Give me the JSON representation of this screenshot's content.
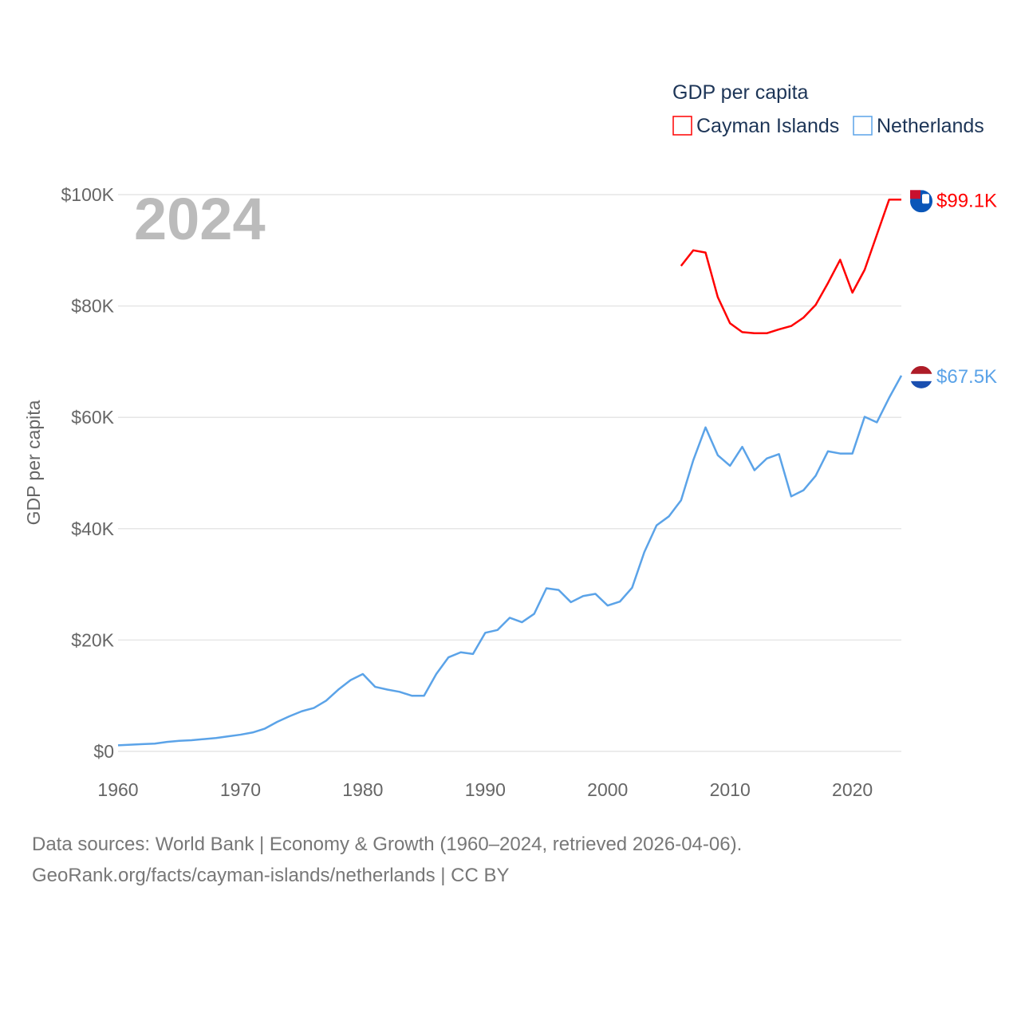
{
  "chart_data": {
    "type": "line",
    "title": "GDP per capita",
    "current_year_label": "2024",
    "xlabel": "",
    "ylabel": "GDP per capita",
    "xlim": [
      1960,
      2024
    ],
    "ylim": [
      0,
      100000
    ],
    "grid": true,
    "legend_placement": "top-right",
    "legend_title": "GDP per capita",
    "x_ticks": [
      1960,
      1970,
      1980,
      1990,
      2000,
      2010,
      2020
    ],
    "x_tick_labels": [
      "1960",
      "1970",
      "1980",
      "1990",
      "2000",
      "2010",
      "2020"
    ],
    "y_ticks": [
      0,
      20000,
      40000,
      60000,
      80000,
      100000
    ],
    "y_tick_labels": [
      "$0",
      "$20K",
      "$40K",
      "$60K",
      "$80K",
      "$100K"
    ],
    "series": [
      {
        "name": "Cayman Islands",
        "color": "#ff0000",
        "end_label": "$99.1K",
        "flag": "cayman-islands-flag",
        "x": [
          2006,
          2007,
          2008,
          2009,
          2010,
          2011,
          2012,
          2013,
          2014,
          2015,
          2016,
          2017,
          2018,
          2019,
          2020,
          2021,
          2022,
          2023,
          2024
        ],
        "values": [
          87.2,
          90.0,
          89.6,
          81.6,
          76.9,
          75.3,
          75.1,
          75.1,
          75.8,
          76.4,
          77.9,
          80.2,
          84.1,
          88.3,
          82.4,
          86.5,
          92.8,
          99.1,
          99.1
        ]
      },
      {
        "name": "Netherlands",
        "color": "#5ba3e8",
        "end_label": "$67.5K",
        "flag": "netherlands-flag",
        "x": [
          1960,
          1961,
          1962,
          1963,
          1964,
          1965,
          1966,
          1967,
          1968,
          1969,
          1970,
          1971,
          1972,
          1973,
          1974,
          1975,
          1976,
          1977,
          1978,
          1979,
          1980,
          1981,
          1982,
          1983,
          1984,
          1985,
          1986,
          1987,
          1988,
          1989,
          1990,
          1991,
          1992,
          1993,
          1994,
          1995,
          1996,
          1997,
          1998,
          1999,
          2000,
          2001,
          2002,
          2003,
          2004,
          2005,
          2006,
          2007,
          2008,
          2009,
          2010,
          2011,
          2012,
          2013,
          2014,
          2015,
          2016,
          2017,
          2018,
          2019,
          2020,
          2021,
          2022,
          2023,
          2024
        ],
        "values": [
          1.1,
          1.2,
          1.3,
          1.4,
          1.7,
          1.9,
          2.0,
          2.2,
          2.4,
          2.7,
          3.0,
          3.4,
          4.1,
          5.3,
          6.3,
          7.2,
          7.8,
          9.1,
          11.1,
          12.8,
          13.9,
          11.6,
          11.1,
          10.7,
          10.0,
          10.0,
          13.9,
          16.9,
          17.8,
          17.5,
          21.3,
          21.8,
          24.0,
          23.2,
          24.7,
          29.3,
          29.0,
          26.8,
          27.9,
          28.3,
          26.2,
          26.9,
          29.4,
          35.8,
          40.6,
          42.2,
          45.1,
          52.3,
          58.2,
          53.2,
          51.3,
          54.7,
          50.5,
          52.6,
          53.4,
          45.8,
          46.9,
          49.5,
          53.9,
          53.5,
          53.5,
          60.1,
          59.1,
          63.5,
          67.5
        ]
      }
    ],
    "values_unit": "thousand USD"
  },
  "footer": {
    "line1": "Data sources: World Bank | Economy & Growth (1960–2024, retrieved 2026-04-06).",
    "line2": "GeoRank.org/facts/cayman-islands/netherlands | CC BY"
  }
}
